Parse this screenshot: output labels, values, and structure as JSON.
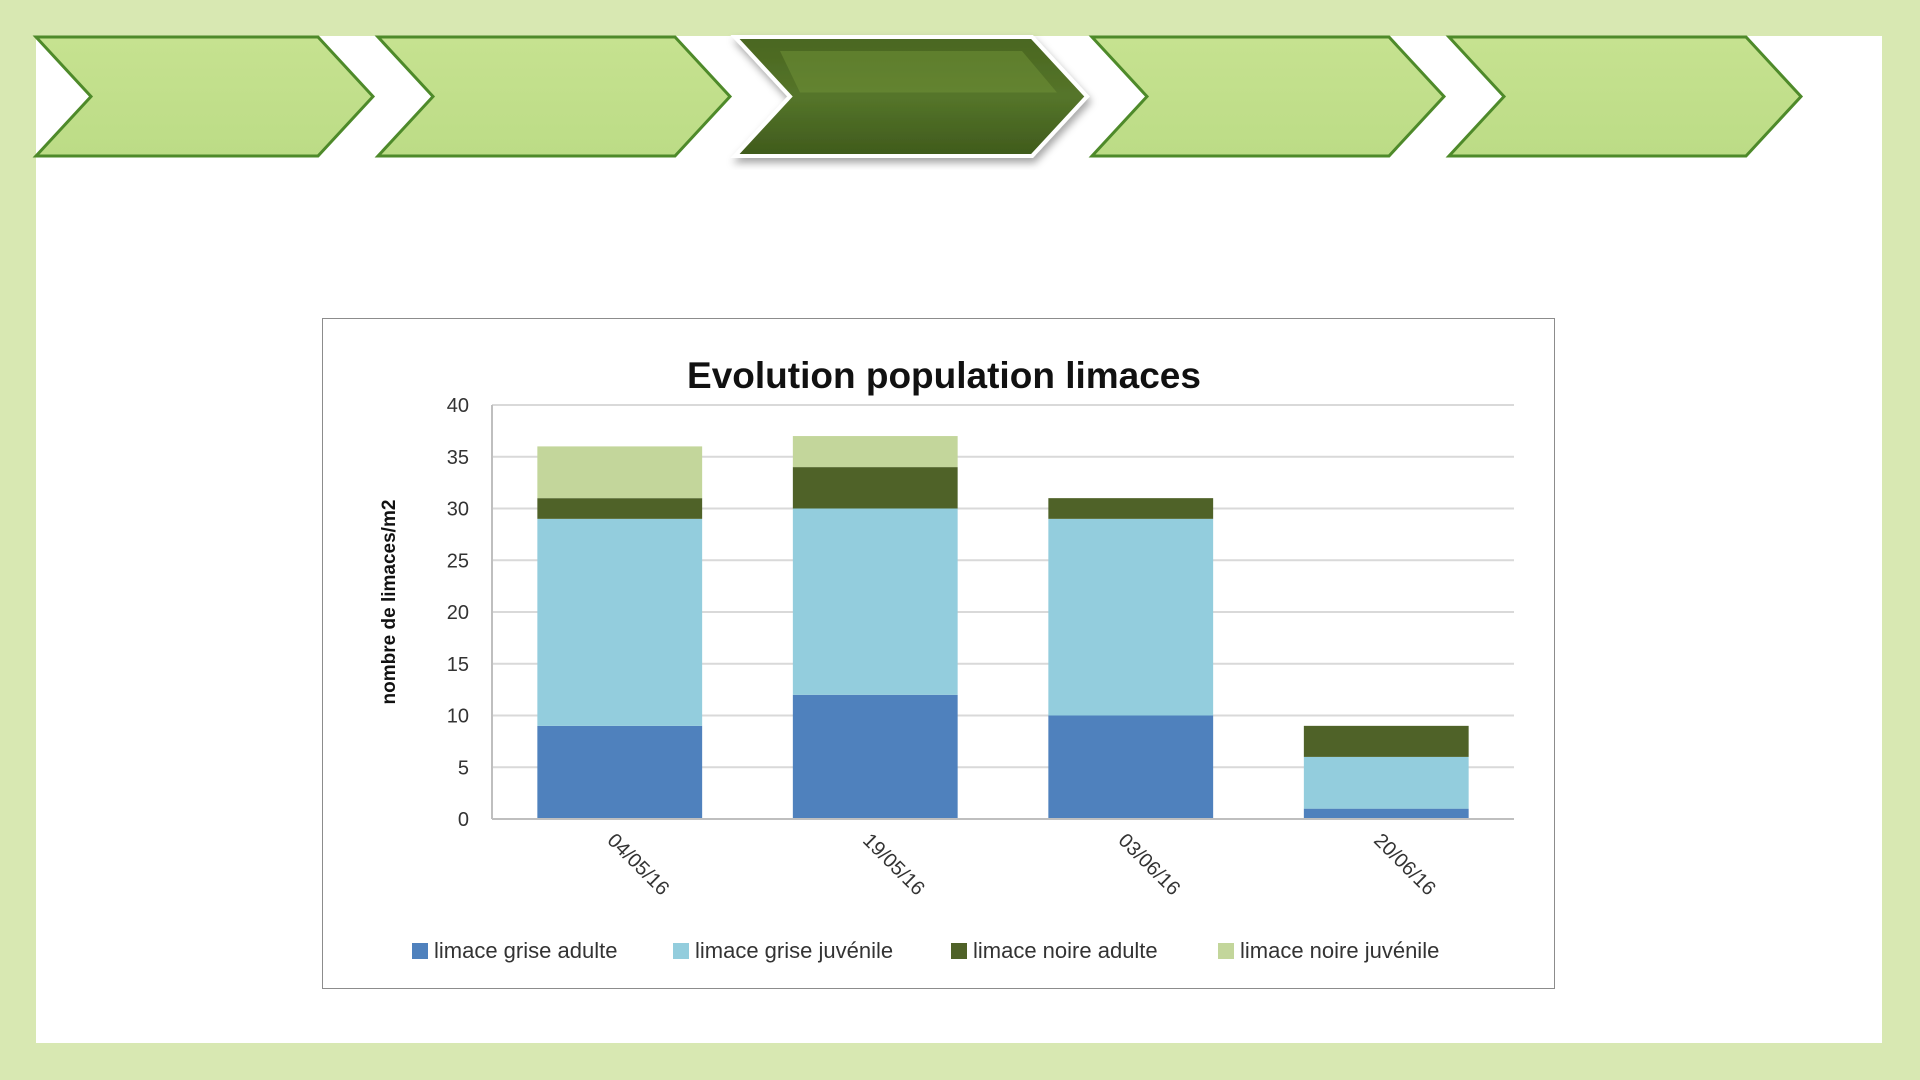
{
  "slide": {
    "background_color": "#d8e8b2",
    "steps": [
      {
        "active": false
      },
      {
        "active": false
      },
      {
        "active": true
      },
      {
        "active": false
      },
      {
        "active": false
      }
    ]
  },
  "chart_data": {
    "type": "bar",
    "stacked": true,
    "title": "Evolution population limaces",
    "xlabel": "",
    "ylabel": "nombre de limaces/m2",
    "ylim": [
      0,
      40
    ],
    "yticks": [
      0,
      5,
      10,
      15,
      20,
      25,
      30,
      35,
      40
    ],
    "grid": true,
    "legend_position": "bottom",
    "categories": [
      "04/05/16",
      "19/05/16",
      "03/06/16",
      "20/06/16"
    ],
    "series": [
      {
        "name": "limace grise adulte",
        "color": "#4f81bd",
        "values": [
          9,
          12,
          10,
          1
        ]
      },
      {
        "name": "limace grise juvénile",
        "color": "#93cddd",
        "values": [
          20,
          18,
          19,
          5
        ]
      },
      {
        "name": "limace noire adulte",
        "color": "#4f6228",
        "values": [
          2,
          4,
          2,
          3
        ]
      },
      {
        "name": "limace noire juvénile",
        "color": "#c3d69b",
        "values": [
          5,
          3,
          0,
          0
        ]
      }
    ]
  }
}
